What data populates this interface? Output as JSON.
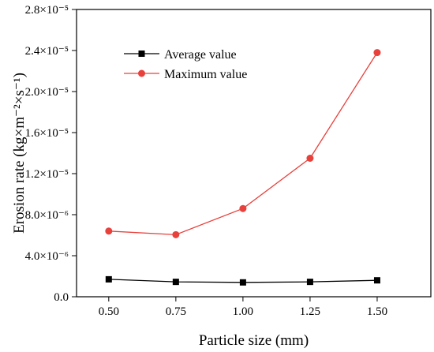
{
  "chart_data": {
    "type": "line",
    "xlabel": "Particle size (mm)",
    "ylabel": "Erosion rate (kg×m⁻²×s⁻¹)",
    "x": [
      0.5,
      0.75,
      1.0,
      1.25,
      1.5
    ],
    "x_tick_labels": [
      "0.50",
      "0.75",
      "1.00",
      "1.25",
      "1.50"
    ],
    "xlim": [
      0.38,
      1.7
    ],
    "ylim": [
      0.0,
      2.8e-05
    ],
    "y_ticks": [
      0.0,
      4e-06,
      8e-06,
      1.2e-05,
      1.6e-05,
      2e-05,
      2.4e-05,
      2.8e-05
    ],
    "y_tick_labels": [
      "0.0",
      "4.0×10⁻⁶",
      "8.0×10⁻⁶",
      "1.2×10⁻⁵",
      "1.6×10⁻⁵",
      "2.0×10⁻⁵",
      "2.4×10⁻⁵",
      "2.8×10⁻⁵"
    ],
    "grid": false,
    "legend_position": "top-left",
    "series": [
      {
        "name": "Average value",
        "marker": "square",
        "color": "#000000",
        "values": [
          1.7e-06,
          1.45e-06,
          1.4e-06,
          1.45e-06,
          1.6e-06
        ]
      },
      {
        "name": "Maximum value",
        "marker": "circle",
        "color": "#e8413c",
        "values": [
          6.4e-06,
          6.05e-06,
          8.6e-06,
          1.35e-05,
          2.38e-05
        ]
      }
    ]
  }
}
